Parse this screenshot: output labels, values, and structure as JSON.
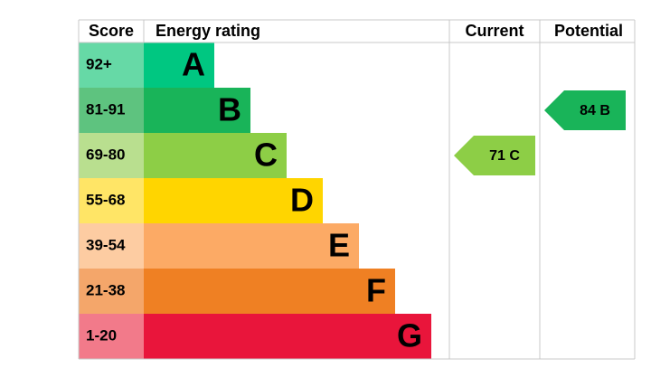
{
  "headers": {
    "score": "Score",
    "rating": "Energy rating",
    "current": "Current",
    "potential": "Potential"
  },
  "bands": [
    {
      "score": "92+",
      "letter": "A",
      "color": "#00c781",
      "score_color": "#66d9a6"
    },
    {
      "score": "81-91",
      "letter": "B",
      "color": "#19b459",
      "score_color": "#5ec37f"
    },
    {
      "score": "69-80",
      "letter": "C",
      "color": "#8dce46",
      "score_color": "#b9df8f"
    },
    {
      "score": "55-68",
      "letter": "D",
      "color": "#ffd500",
      "score_color": "#ffe566"
    },
    {
      "score": "39-54",
      "letter": "E",
      "color": "#fcaa65",
      "score_color": "#fdcca2"
    },
    {
      "score": "21-38",
      "letter": "F",
      "color": "#ef8023",
      "score_color": "#f4a66a"
    },
    {
      "score": "1-20",
      "letter": "G",
      "color": "#e9153b",
      "score_color": "#f27a8a"
    }
  ],
  "current": {
    "value": 71,
    "label": "71 C"
  },
  "potential": {
    "value": 84,
    "label": "84 B"
  }
}
